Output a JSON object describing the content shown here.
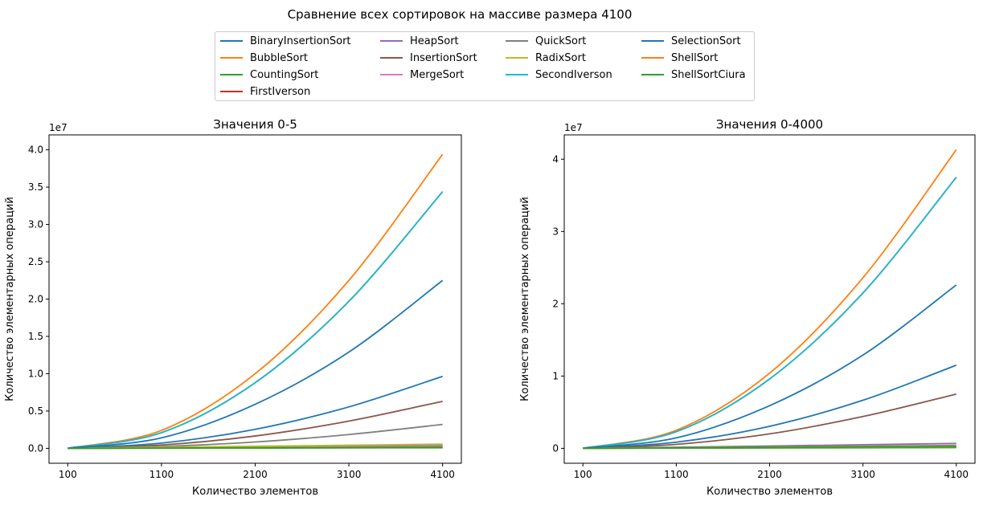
{
  "figure": {
    "suptitle": "Сравнение всех сортировок на массиве размера 4100"
  },
  "legend": [
    {
      "name": "BinaryInsertionSort",
      "color": "#1f77b4"
    },
    {
      "name": "BubbleSort",
      "color": "#ff7f0e"
    },
    {
      "name": "CountingSort",
      "color": "#2ca02c"
    },
    {
      "name": "FirstIverson",
      "color": "#d62728"
    },
    {
      "name": "HeapSort",
      "color": "#9467bd"
    },
    {
      "name": "InsertionSort",
      "color": "#8c564b"
    },
    {
      "name": "MergeSort",
      "color": "#e377c2"
    },
    {
      "name": "QuickSort",
      "color": "#7f7f7f"
    },
    {
      "name": "RadixSort",
      "color": "#bcbd22"
    },
    {
      "name": "SecondIverson",
      "color": "#17becf"
    },
    {
      "name": "SelectionSort",
      "color": "#1f77b4"
    },
    {
      "name": "ShellSort",
      "color": "#ff7f0e"
    },
    {
      "name": "ShellSortCiura",
      "color": "#2ca02c"
    }
  ],
  "chart_data": [
    {
      "type": "line",
      "title": "Значения 0-5",
      "xlabel": "Количество элементов",
      "ylabel": "Количество элементарных операций",
      "y_offset_label": "1e7",
      "xlim": [
        100,
        4100
      ],
      "ylim": [
        0,
        40000000
      ],
      "x_ticks": [
        100,
        1100,
        2100,
        3100,
        4100
      ],
      "y_ticks": [
        0,
        5000000,
        10000000,
        15000000,
        20000000,
        25000000,
        30000000,
        35000000,
        40000000
      ],
      "y_tick_labels": [
        "0.0",
        "0.5",
        "1.0",
        "1.5",
        "2.0",
        "2.5",
        "3.0",
        "3.5",
        "4.0"
      ],
      "x": [
        100,
        1100,
        2100,
        3100,
        4100
      ],
      "series": [
        {
          "name": "BinaryInsertionSort",
          "color": "#1f77b4",
          "values": [
            6000,
            700000,
            2550000,
            5550000,
            9650000
          ]
        },
        {
          "name": "BubbleSort",
          "color": "#ff7f0e",
          "values": [
            15000,
            2400000,
            10000000,
            22500000,
            39400000
          ]
        },
        {
          "name": "CountingSort",
          "color": "#2ca02c",
          "values": [
            1000,
            20000,
            40000,
            60000,
            80000
          ]
        },
        {
          "name": "FirstIverson",
          "color": "#d62728",
          "values": [
            15000,
            2100000,
            8800000,
            19700000,
            34400000
          ]
        },
        {
          "name": "HeapSort",
          "color": "#9467bd",
          "values": [
            5000,
            90000,
            180000,
            270000,
            370000
          ]
        },
        {
          "name": "InsertionSort",
          "color": "#8c564b",
          "values": [
            4000,
            450000,
            1650000,
            3650000,
            6300000
          ]
        },
        {
          "name": "MergeSort",
          "color": "#e377c2",
          "values": [
            3000,
            60000,
            120000,
            190000,
            260000
          ]
        },
        {
          "name": "QuickSort",
          "color": "#7f7f7f",
          "values": [
            3000,
            250000,
            850000,
            1850000,
            3200000
          ]
        },
        {
          "name": "RadixSort",
          "color": "#bcbd22",
          "values": [
            6000,
            140000,
            280000,
            420000,
            560000
          ]
        },
        {
          "name": "SecondIverson",
          "color": "#17becf",
          "values": [
            15000,
            2100000,
            8800000,
            19700000,
            34400000
          ]
        },
        {
          "name": "SelectionSort",
          "color": "#1f77b4",
          "values": [
            10000,
            1400000,
            5900000,
            12900000,
            22500000
          ]
        },
        {
          "name": "ShellSort",
          "color": "#ff7f0e",
          "values": [
            2000,
            40000,
            80000,
            120000,
            170000
          ]
        },
        {
          "name": "ShellSortCiura",
          "color": "#2ca02c",
          "values": [
            2000,
            30000,
            70000,
            100000,
            140000
          ]
        }
      ]
    },
    {
      "type": "line",
      "title": "Значения 0-4000",
      "xlabel": "Количество элементов",
      "ylabel": "Количество элементарных операций",
      "y_offset_label": "1e7",
      "xlim": [
        100,
        4100
      ],
      "ylim": [
        0,
        41300000
      ],
      "x_ticks": [
        100,
        1100,
        2100,
        3100,
        4100
      ],
      "y_ticks": [
        0,
        10000000,
        20000000,
        30000000,
        40000000
      ],
      "y_tick_labels": [
        "0",
        "1",
        "2",
        "3",
        "4"
      ],
      "x": [
        100,
        1100,
        2100,
        3100,
        4100
      ],
      "series": [
        {
          "name": "BinaryInsertionSort",
          "color": "#1f77b4",
          "values": [
            7000,
            850000,
            3050000,
            6650000,
            11500000
          ]
        },
        {
          "name": "BubbleSort",
          "color": "#ff7f0e",
          "values": [
            16000,
            2500000,
            10400000,
            23600000,
            41300000
          ]
        },
        {
          "name": "CountingSort",
          "color": "#2ca02c",
          "values": [
            1000,
            25000,
            50000,
            75000,
            100000
          ]
        },
        {
          "name": "FirstIverson",
          "color": "#d62728",
          "values": [
            15000,
            2300000,
            9600000,
            21500000,
            37500000
          ]
        },
        {
          "name": "HeapSort",
          "color": "#9467bd",
          "values": [
            5000,
            100000,
            200000,
            300000,
            400000
          ]
        },
        {
          "name": "InsertionSort",
          "color": "#8c564b",
          "values": [
            5000,
            550000,
            2000000,
            4400000,
            7500000
          ]
        },
        {
          "name": "MergeSort",
          "color": "#e377c2",
          "values": [
            3000,
            70000,
            140000,
            210000,
            290000
          ]
        },
        {
          "name": "QuickSort",
          "color": "#7f7f7f",
          "values": [
            3000,
            150000,
            320000,
            500000,
            680000
          ]
        },
        {
          "name": "RadixSort",
          "color": "#bcbd22",
          "values": [
            5000,
            50000,
            100000,
            150000,
            200000
          ]
        },
        {
          "name": "SecondIverson",
          "color": "#17becf",
          "values": [
            15000,
            2300000,
            9600000,
            21500000,
            37500000
          ]
        },
        {
          "name": "SelectionSort",
          "color": "#1f77b4",
          "values": [
            12000,
            1450000,
            5900000,
            12900000,
            22600000
          ]
        },
        {
          "name": "ShellSort",
          "color": "#ff7f0e",
          "values": [
            2000,
            60000,
            130000,
            200000,
            270000
          ]
        },
        {
          "name": "ShellSortCiura",
          "color": "#2ca02c",
          "values": [
            2000,
            50000,
            110000,
            170000,
            230000
          ]
        }
      ]
    }
  ]
}
